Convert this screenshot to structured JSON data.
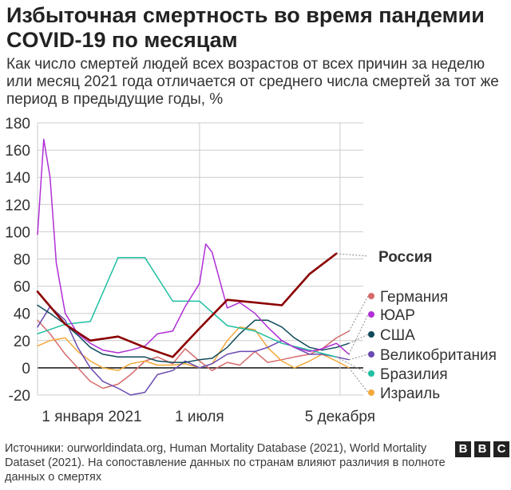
{
  "title": "Избыточная смертность во время пандемии COVID-19 по месяцам",
  "subtitle": "Как число смертей людей всех возрастов от всех причин за неделю или месяц 2021 года отличается от среднего числа смертей за тот же период в предыдущие годы, %",
  "source": "Источники: ourworldindata.org, Human Mortality Database (2021), World Mortality Dataset (2021). На сопоставление данных по странам влияют различия в полноте данных о смертях",
  "logo": [
    "B",
    "B",
    "C"
  ],
  "colors": {
    "russia": "#8b0000",
    "germany": "#d66a6a",
    "south_africa": "#b02fd6",
    "usa": "#0f4a5a",
    "uk": "#6a4ab0",
    "brazil": "#1fbfa0",
    "israel": "#f2a93b",
    "grid": "#cccccc",
    "zero": "#222222"
  },
  "chart_data": {
    "type": "line",
    "ylim": [
      -20,
      180
    ],
    "yticks": [
      -20,
      0,
      20,
      40,
      60,
      80,
      100,
      120,
      140,
      160,
      180
    ],
    "xlim": [
      "2021-01-01",
      "2021-12-31"
    ],
    "xticks": [
      {
        "date": "2021-01-01",
        "label": "1 января 2021"
      },
      {
        "date": "2021-07-01",
        "label": "1 июля"
      },
      {
        "date": "2021-12-05",
        "label": "5 декабря"
      }
    ],
    "series": [
      {
        "name": "Россия",
        "key": "russia",
        "bold": true,
        "x": [
          "2021-01-01",
          "2021-02-01",
          "2021-03-01",
          "2021-04-01",
          "2021-05-01",
          "2021-06-01",
          "2021-07-01",
          "2021-08-01",
          "2021-09-01",
          "2021-10-01",
          "2021-11-01",
          "2021-12-01"
        ],
        "y": [
          56,
          32,
          20,
          23,
          15,
          8,
          29,
          50,
          48,
          46,
          69,
          84
        ]
      },
      {
        "name": "Германия",
        "key": "germany",
        "x": [
          "2021-01-01",
          "2021-01-15",
          "2021-02-01",
          "2021-02-15",
          "2021-03-01",
          "2021-03-15",
          "2021-04-01",
          "2021-04-15",
          "2021-05-01",
          "2021-05-15",
          "2021-06-01",
          "2021-06-15",
          "2021-07-01",
          "2021-07-15",
          "2021-08-01",
          "2021-08-15",
          "2021-09-01",
          "2021-09-15",
          "2021-10-01",
          "2021-10-15",
          "2021-11-01",
          "2021-11-15",
          "2021-12-01",
          "2021-12-15"
        ],
        "y": [
          35,
          25,
          10,
          0,
          -10,
          -15,
          -12,
          -5,
          5,
          8,
          3,
          14,
          5,
          -2,
          4,
          2,
          12,
          4,
          6,
          8,
          10,
          14,
          22,
          27
        ]
      },
      {
        "name": "ЮАР",
        "key": "south_africa",
        "x": [
          "2021-01-01",
          "2021-01-08",
          "2021-01-15",
          "2021-01-22",
          "2021-02-01",
          "2021-02-15",
          "2021-03-01",
          "2021-03-15",
          "2021-04-01",
          "2021-04-15",
          "2021-05-01",
          "2021-05-15",
          "2021-06-01",
          "2021-06-15",
          "2021-07-01",
          "2021-07-08",
          "2021-07-15",
          "2021-08-01",
          "2021-08-15",
          "2021-09-01",
          "2021-09-15",
          "2021-10-01",
          "2021-10-15",
          "2021-11-01",
          "2021-11-15",
          "2021-12-01",
          "2021-12-15"
        ],
        "y": [
          98,
          168,
          140,
          77,
          40,
          25,
          18,
          13,
          11,
          13,
          16,
          25,
          27,
          45,
          62,
          91,
          85,
          44,
          48,
          40,
          30,
          20,
          15,
          12,
          14,
          18,
          10
        ]
      },
      {
        "name": "США",
        "key": "usa",
        "x": [
          "2021-01-01",
          "2021-01-15",
          "2021-02-01",
          "2021-02-15",
          "2021-03-01",
          "2021-03-15",
          "2021-04-01",
          "2021-04-15",
          "2021-05-01",
          "2021-05-15",
          "2021-06-01",
          "2021-06-15",
          "2021-07-01",
          "2021-07-15",
          "2021-08-01",
          "2021-08-15",
          "2021-09-01",
          "2021-09-15",
          "2021-10-01",
          "2021-10-15",
          "2021-11-01",
          "2021-11-15",
          "2021-12-01",
          "2021-12-15"
        ],
        "y": [
          46,
          40,
          32,
          24,
          15,
          10,
          8,
          8,
          8,
          5,
          4,
          4,
          6,
          7,
          15,
          25,
          35,
          35,
          30,
          22,
          15,
          13,
          15,
          18
        ]
      },
      {
        "name": "Великобритания",
        "key": "uk",
        "x": [
          "2021-01-01",
          "2021-01-15",
          "2021-02-01",
          "2021-02-15",
          "2021-03-01",
          "2021-03-15",
          "2021-04-01",
          "2021-04-15",
          "2021-05-01",
          "2021-05-15",
          "2021-06-01",
          "2021-06-15",
          "2021-07-01",
          "2021-07-15",
          "2021-08-01",
          "2021-08-15",
          "2021-09-01",
          "2021-09-15",
          "2021-10-01",
          "2021-10-15",
          "2021-11-01",
          "2021-11-15",
          "2021-12-01",
          "2021-12-15"
        ],
        "y": [
          30,
          45,
          35,
          15,
          0,
          -10,
          -15,
          -20,
          -18,
          -5,
          -2,
          5,
          0,
          3,
          10,
          12,
          12,
          15,
          20,
          15,
          10,
          10,
          8,
          6
        ]
      },
      {
        "name": "Бразилия",
        "key": "brazil",
        "x": [
          "2021-01-01",
          "2021-02-01",
          "2021-03-01",
          "2021-04-01",
          "2021-05-01",
          "2021-06-01",
          "2021-07-01",
          "2021-08-01",
          "2021-09-01",
          "2021-10-01",
          "2021-11-01",
          "2021-12-01"
        ],
        "y": [
          25,
          32,
          34,
          81,
          81,
          49,
          49,
          31,
          27,
          18,
          13,
          8
        ]
      },
      {
        "name": "Израиль",
        "key": "israel",
        "x": [
          "2021-01-01",
          "2021-01-15",
          "2021-02-01",
          "2021-02-15",
          "2021-03-01",
          "2021-03-15",
          "2021-04-01",
          "2021-04-15",
          "2021-05-01",
          "2021-05-15",
          "2021-06-01",
          "2021-06-15",
          "2021-07-01",
          "2021-07-15",
          "2021-08-01",
          "2021-08-15",
          "2021-09-01",
          "2021-09-15",
          "2021-10-01",
          "2021-10-15",
          "2021-11-01",
          "2021-11-15",
          "2021-12-01",
          "2021-12-15"
        ],
        "y": [
          16,
          20,
          22,
          12,
          5,
          0,
          -2,
          3,
          5,
          2,
          2,
          3,
          0,
          3,
          20,
          30,
          28,
          15,
          5,
          0,
          5,
          10,
          5,
          0
        ]
      }
    ]
  }
}
